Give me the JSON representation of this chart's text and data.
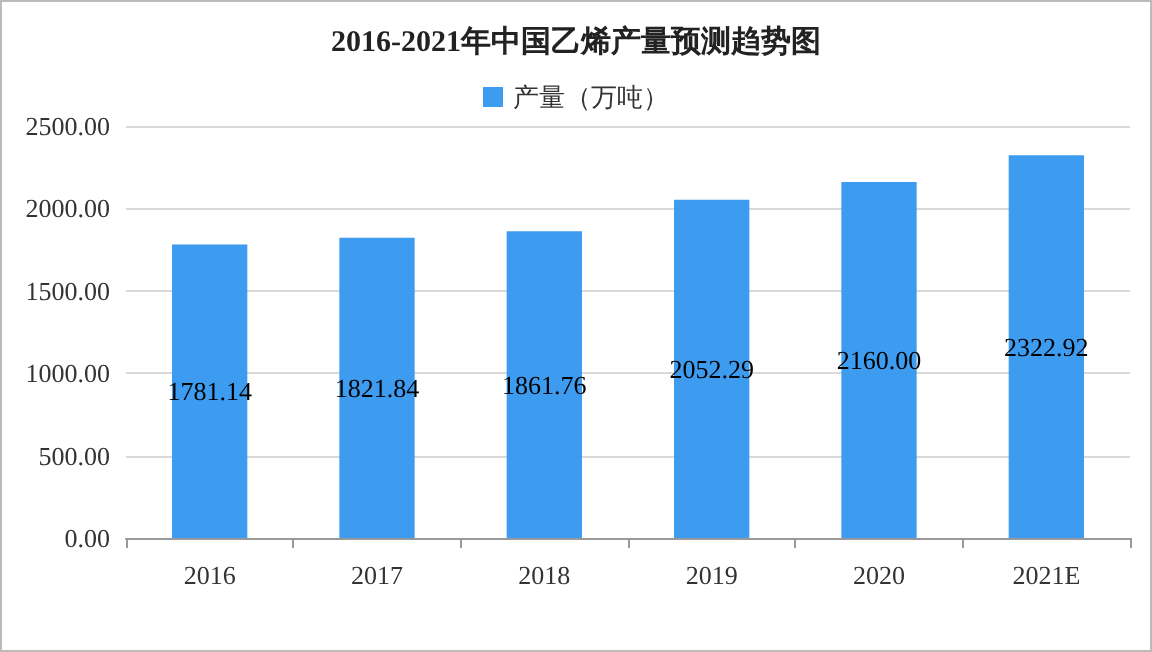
{
  "chart_data": {
    "type": "bar",
    "title": "2016-2021年中国乙烯产量预测趋势图",
    "categories": [
      "2016",
      "2017",
      "2018",
      "2019",
      "2020",
      "2021E"
    ],
    "series": [
      {
        "name": "产量（万吨）",
        "color": "#3d9bf0",
        "values": [
          1781.14,
          1821.84,
          1861.76,
          2052.29,
          2160.0,
          2322.92
        ],
        "value_labels": [
          "1781.14",
          "1821.84",
          "1861.76",
          "2052.29",
          "2160.00",
          "2322.92"
        ]
      }
    ],
    "ylim": [
      0,
      2500
    ],
    "yticks": [
      {
        "value": 0,
        "label": "0.00"
      },
      {
        "value": 500,
        "label": "500.00"
      },
      {
        "value": 1000,
        "label": "1000.00"
      },
      {
        "value": 1500,
        "label": "1500.00"
      },
      {
        "value": 2000,
        "label": "2000.00"
      },
      {
        "value": 2500,
        "label": "2500.00"
      }
    ],
    "grid": "y",
    "legend": "top"
  }
}
